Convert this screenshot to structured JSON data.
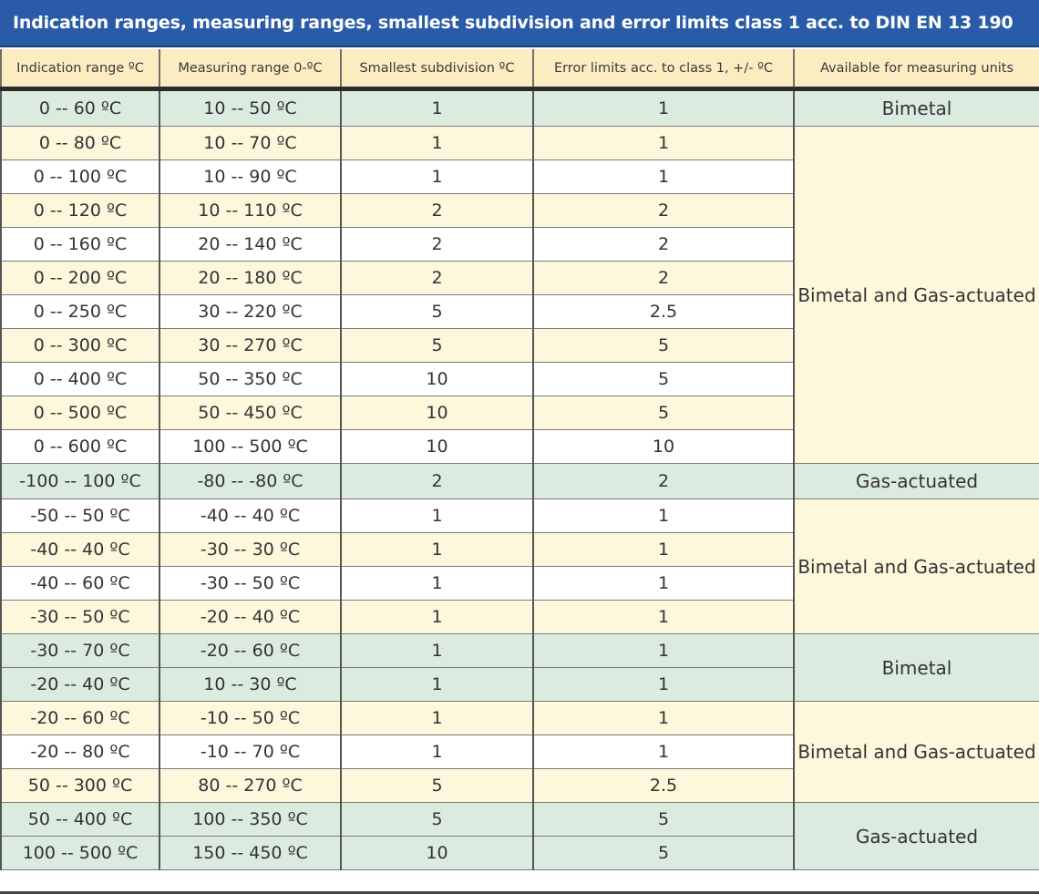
{
  "title": "Indication ranges, measuring ranges, smallest subdivision and error limits class 1 acc. to DIN EN 13 190",
  "columns": [
    "Indication range ºC",
    "Measuring range 0-ºC",
    "Smallest subdivision ºC",
    "Error limits acc. to class 1, +/- ºC",
    "Available for measuring units"
  ],
  "rows": [
    {
      "indication": "0 -- 60 ºC",
      "measuring": "10 -- 50 ºC",
      "subdivision": "1",
      "error": "1"
    },
    {
      "indication": "0 -- 80 ºC",
      "measuring": "10 -- 70 ºC",
      "subdivision": "1",
      "error": "1"
    },
    {
      "indication": "0 -- 100 ºC",
      "measuring": "10 -- 90 ºC",
      "subdivision": "1",
      "error": "1"
    },
    {
      "indication": "0 -- 120 ºC",
      "measuring": "10 -- 110 ºC",
      "subdivision": "2",
      "error": "2"
    },
    {
      "indication": "0 -- 160 ºC",
      "measuring": "20 -- 140 ºC",
      "subdivision": "2",
      "error": "2"
    },
    {
      "indication": "0 -- 200 ºC",
      "measuring": "20 -- 180 ºC",
      "subdivision": "2",
      "error": "2"
    },
    {
      "indication": "0 -- 250 ºC",
      "measuring": "30 -- 220 ºC",
      "subdivision": "5",
      "error": "2.5"
    },
    {
      "indication": "0 -- 300 ºC",
      "measuring": "30 -- 270 ºC",
      "subdivision": "5",
      "error": "5"
    },
    {
      "indication": "0 -- 400 ºC",
      "measuring": "50 -- 350 ºC",
      "subdivision": "10",
      "error": "5"
    },
    {
      "indication": "0 -- 500 ºC",
      "measuring": "50 -- 450 ºC",
      "subdivision": "10",
      "error": "5"
    },
    {
      "indication": "0 -- 600 ºC",
      "measuring": "100 -- 500 ºC",
      "subdivision": "10",
      "error": "10"
    },
    {
      "indication": "-100 -- 100 ºC",
      "measuring": "-80 -- -80 ºC",
      "subdivision": "2",
      "error": "2"
    },
    {
      "indication": "-50 -- 50 ºC",
      "measuring": "-40 -- 40 ºC",
      "subdivision": "1",
      "error": "1"
    },
    {
      "indication": "-40 -- 40 ºC",
      "measuring": "-30 -- 30 ºC",
      "subdivision": "1",
      "error": "1"
    },
    {
      "indication": "-40 -- 60 ºC",
      "measuring": "-30 -- 50 ºC",
      "subdivision": "1",
      "error": "1"
    },
    {
      "indication": "-30 -- 50 ºC",
      "measuring": "-20 -- 40 ºC",
      "subdivision": "1",
      "error": "1"
    },
    {
      "indication": "-30 -- 70 ºC",
      "measuring": "-20 -- 60 ºC",
      "subdivision": "1",
      "error": "1"
    },
    {
      "indication": "-20 -- 40 ºC",
      "measuring": "10 -- 30 ºC",
      "subdivision": "1",
      "error": "1"
    },
    {
      "indication": "-20 -- 60 ºC",
      "measuring": "-10 -- 50 ºC",
      "subdivision": "1",
      "error": "1"
    },
    {
      "indication": "-20 -- 80 ºC",
      "measuring": "-10 -- 70 ºC",
      "subdivision": "1",
      "error": "1"
    },
    {
      "indication": "50 -- 300 ºC",
      "measuring": "80 -- 270 ºC",
      "subdivision": "5",
      "error": "2.5"
    },
    {
      "indication": "50 -- 400 ºC",
      "measuring": "100 -- 350 ºC",
      "subdivision": "5",
      "error": "5"
    },
    {
      "indication": "100 -- 500 ºC",
      "measuring": "150 -- 450 ºC",
      "subdivision": "10",
      "error": "5"
    }
  ],
  "availability": [
    {
      "start_row": 0,
      "row_count": 1,
      "text": "Bimetal"
    },
    {
      "start_row": 1,
      "row_count": 10,
      "text": "Bimetal and Gas-actuated"
    },
    {
      "start_row": 11,
      "row_count": 1,
      "text": "Gas-actuated"
    },
    {
      "start_row": 12,
      "row_count": 4,
      "text": "Bimetal and Gas-actuated"
    },
    {
      "start_row": 16,
      "row_count": 2,
      "text": "Bimetal"
    },
    {
      "start_row": 18,
      "row_count": 3,
      "text": "Bimetal and Gas-actuated"
    },
    {
      "start_row": 21,
      "row_count": 2,
      "text": "Gas-actuated"
    }
  ],
  "colors": {
    "title_bar": "#2a5ba8",
    "header": "#fcecc2",
    "green_row": "#dcebdf",
    "yellow_row": "#fdf7dc",
    "white_row": "#ffffff"
  }
}
